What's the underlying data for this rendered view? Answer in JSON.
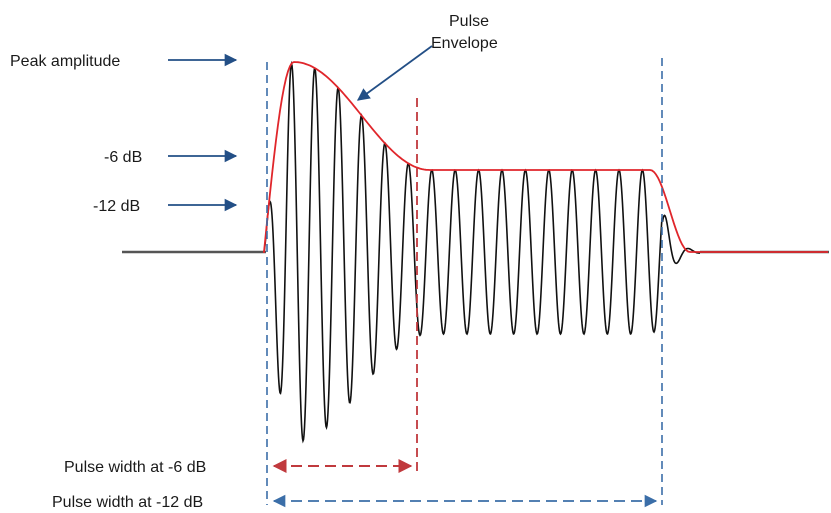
{
  "labels": {
    "peak_amplitude": "Peak amplitude",
    "minus6db": "-6 dB",
    "minus12db": "-12 dB",
    "pulse_envelope_line1": "Pulse",
    "pulse_envelope_line2": "Envelope",
    "pulse_width_6db": "Pulse width at -6 dB",
    "pulse_width_12db": "Pulse width at -12 dB"
  },
  "colors": {
    "signal": "#111111",
    "envelope": "#e0262b",
    "blue_marker": "#3b6ea8",
    "red_marker": "#c0393d",
    "arrow": "#234f86",
    "baseline": "#555555"
  }
}
